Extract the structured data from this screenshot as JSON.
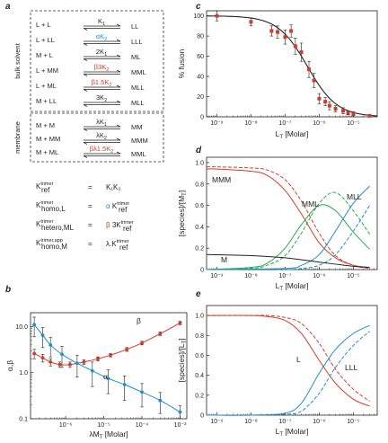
{
  "panels": {
    "a": {
      "label": "a",
      "bulk_label": "bulk solvent",
      "membrane_label": "membrane",
      "bulk_reactions": [
        {
          "left": "L + L",
          "const_a": "",
          "const_b": "K",
          "sub": "1",
          "const_c": "",
          "right": "LL",
          "color": "#222222"
        },
        {
          "left": "L + LL",
          "const_a": "α",
          "const_b": "K",
          "sub": "2",
          "const_c": "",
          "right": "LLL",
          "color": "#1f8fc8"
        },
        {
          "left": "M + L",
          "const_a": "2",
          "const_b": "K",
          "sub": "1",
          "const_c": "",
          "right": "ML",
          "color": "#222222"
        },
        {
          "left": "L + MM",
          "const_a": "β3",
          "const_b": "K",
          "sub": "2",
          "const_c": "",
          "right": "MML",
          "color": "#d23b2b"
        },
        {
          "left": "L + ML",
          "const_a": "β1.5",
          "const_b": "K",
          "sub": "2",
          "const_c": "",
          "right": "MLL",
          "color": "#d23b2b"
        },
        {
          "left": "M + LL",
          "const_a": "3",
          "const_b": "K",
          "sub": "2",
          "const_c": "",
          "right": "MLL",
          "color": "#222222"
        }
      ],
      "membrane_reactions": [
        {
          "left": "M + M",
          "const_a": "λ",
          "const_b": "K",
          "sub": "1",
          "const_c": "",
          "right": "MM",
          "color": "#222222"
        },
        {
          "left": "M + MM",
          "const_a": "λ",
          "const_b": "K",
          "sub": "2",
          "const_c": "",
          "right": "MMM",
          "color": "#222222"
        },
        {
          "left": "M + ML",
          "const_a": "βλ1.5",
          "const_b": "K",
          "sub": "2",
          "const_c": "",
          "right": "MML",
          "color": "#d23b2b"
        }
      ],
      "equations": [
        {
          "K": "K",
          "sup": "trimer",
          "sub": "ref",
          "rhs_pre": "",
          "rhs_color_part": "",
          "rhs": "K₁K₂",
          "color": "#222222"
        },
        {
          "K": "K",
          "sup": "trimer",
          "sub": "homo,L",
          "rhs_pre": "",
          "rhs_color_part": "α",
          "rhs": "K",
          "rhs_sup": "trimer",
          "rhs_sub": "ref",
          "color": "#1f8fc8"
        },
        {
          "K": "K",
          "sup": "trimer",
          "sub": "hetero,ML",
          "rhs_pre": "",
          "rhs_color_part": "β",
          "rhs": "3K",
          "rhs_sup": "trimer",
          "rhs_sub": "ref",
          "color": "#d23b2b"
        },
        {
          "K": "K",
          "sup": "trimer,app",
          "sub": "homo,M",
          "rhs_pre": "",
          "rhs_color_part": "",
          "rhs": "λ.K",
          "rhs_sup": "trimer",
          "rhs_sub": "ref",
          "color": "#222222"
        }
      ]
    },
    "b": {
      "label": "b",
      "xlabel": "λM",
      "xlabel_sub": "T",
      "xlabel_unit": " [Molar]",
      "ylabel": "α,β",
      "series_labels": [
        {
          "text": "β",
          "color": "#d23b2b"
        },
        {
          "text": "α",
          "color": "#1f8fc8"
        }
      ]
    },
    "c": {
      "label": "c",
      "xlabel": "L",
      "xlabel_sub": "T",
      "xlabel_unit": " [Molar]",
      "ylabel": "% fusion"
    },
    "d": {
      "label": "d",
      "xlabel": "L",
      "xlabel_sub": "T",
      "xlabel_unit": " [Molar]",
      "ylabel": "[species]/[M",
      "ylabel_sub": "T",
      "ylabel_end": "]",
      "curve_labels": [
        {
          "text": "MMM",
          "color": "#d23b2b"
        },
        {
          "text": "MML",
          "color": "#2aa84a"
        },
        {
          "text": "MLL",
          "color": "#1f8fc8"
        },
        {
          "text": "M",
          "color": "#222222"
        }
      ]
    },
    "e": {
      "label": "e",
      "xlabel": "L",
      "xlabel_sub": "T",
      "xlabel_unit": " [Molar]",
      "ylabel": "[species]/[L",
      "ylabel_sub": "T",
      "ylabel_end": "]",
      "curve_labels": [
        {
          "text": "L",
          "color": "#d23b2b"
        },
        {
          "text": "LLL",
          "color": "#1f8fc8"
        }
      ]
    }
  },
  "chart_data": [
    {
      "panel": "b",
      "type": "line",
      "xscale": "log",
      "yscale": "log",
      "xlim": [
        1.2e-07,
        0.0015
      ],
      "ylim": [
        0.1,
        20
      ],
      "xticks": [
        1e-07,
        1e-06,
        1e-05,
        0.0001,
        0.001
      ],
      "xtick_labels": [
        "10⁻⁷",
        "10⁻⁶",
        "10⁻⁵",
        "10⁻⁴",
        "10⁻³"
      ],
      "yticks": [
        0.1,
        1.0,
        10.0
      ],
      "ytick_labels": [
        "0.1",
        "1.0",
        "10.0"
      ],
      "series": [
        {
          "name": "β",
          "color": "#d23b2b",
          "x": [
            1.5e-07,
            2.5e-07,
            4e-07,
            7e-07,
            1.3e-06,
            3e-06,
            7e-06,
            1.5e-05,
            4e-05,
            0.0001,
            0.0003,
            0.001
          ],
          "y": [
            2.6,
            2.1,
            1.7,
            1.5,
            1.5,
            1.7,
            2.0,
            2.4,
            3.2,
            4.4,
            7.0,
            12.0
          ],
          "err": [
            0.6,
            0.4,
            0.3,
            0.2,
            0.2,
            0.2,
            0.2,
            0.2,
            0.3,
            0.4,
            0.6,
            1.0
          ]
        },
        {
          "name": "α",
          "color": "#1f8fc8",
          "x": [
            1.5e-07,
            2.5e-07,
            4e-07,
            8e-07,
            2e-06,
            5e-06,
            1.3e-05,
            3.5e-05,
            0.0001,
            0.0003,
            0.001
          ],
          "y": [
            11.0,
            6.5,
            4.0,
            2.5,
            1.6,
            1.1,
            0.75,
            0.55,
            0.38,
            0.25,
            0.14
          ],
          "err": [
            5.0,
            3.0,
            1.8,
            1.2,
            0.8,
            0.6,
            0.4,
            0.3,
            0.2,
            0.12,
            0.05
          ]
        }
      ]
    },
    {
      "panel": "c",
      "type": "scatter",
      "xscale": "log",
      "xlim": [
        5e-10,
        5e-05
      ],
      "ylim": [
        0,
        105
      ],
      "xticks": [
        1e-09,
        1e-08,
        1e-07,
        1e-06,
        1e-05,
        0.0001
      ],
      "xtick_labels": [
        "10⁻⁹",
        "10⁻⁸",
        "10⁻⁷",
        "10⁻⁶",
        "10⁻⁵",
        "10⁻⁴"
      ],
      "yticks": [
        0,
        20,
        40,
        60,
        80,
        100
      ],
      "ytick_labels": [
        "0",
        "20",
        "40",
        "60",
        "80",
        "100"
      ],
      "points": {
        "color": "#d23b2b",
        "x": [
          1e-09,
          1e-08,
          4e-08,
          6e-08,
          1e-07,
          1.5e-07,
          2e-07,
          3e-07,
          5e-07,
          7e-07,
          1e-06,
          1.5e-06,
          2e-06,
          3e-06,
          5e-06,
          7e-06,
          1e-05,
          3e-05
        ],
        "y": [
          100,
          94,
          85,
          84,
          79,
          85,
          70,
          64,
          47,
          36,
          18,
          15,
          11,
          8,
          6,
          4,
          3,
          1
        ],
        "err": [
          5,
          4,
          5,
          6,
          7,
          6,
          8,
          9,
          8,
          7,
          5,
          4,
          4,
          3,
          3,
          2,
          2,
          1
        ]
      },
      "fit": {
        "color": "#222222",
        "ic50": 4.5e-07,
        "hill": 1.0,
        "top": 100
      }
    },
    {
      "panel": "d",
      "type": "line",
      "xscale": "log",
      "xlim": [
        5e-10,
        5e-05
      ],
      "ylim": [
        0,
        1.05
      ],
      "xticks": [
        1e-09,
        1e-08,
        1e-07,
        1e-06,
        1e-05,
        0.0001
      ],
      "xtick_labels": [
        "10⁻⁹",
        "10⁻⁸",
        "10⁻⁷",
        "10⁻⁶",
        "10⁻⁵",
        "10⁻⁴"
      ],
      "yticks": [
        0,
        0.2,
        0.4,
        0.6,
        0.8,
        1.0
      ],
      "ytick_labels": [
        "0",
        "0.2",
        "0.4",
        "0.6",
        "0.8",
        "1.0"
      ],
      "series": [
        {
          "name": "MMM",
          "color": "#d23b2b",
          "dash": false,
          "x": [
            5e-10,
            1e-09,
            1e-08,
            3e-08,
            1e-07,
            3e-07,
            1e-06,
            3e-06,
            1e-05,
            3e-05
          ],
          "y": [
            0.94,
            0.94,
            0.92,
            0.88,
            0.74,
            0.52,
            0.25,
            0.11,
            0.04,
            0.02
          ]
        },
        {
          "name": "MMM",
          "color": "#d23b2b",
          "dash": true,
          "x": [
            5e-10,
            1e-09,
            1e-08,
            3e-08,
            1e-07,
            3e-07,
            1e-06,
            3e-06,
            1e-05,
            3e-05
          ],
          "y": [
            0.96,
            0.96,
            0.95,
            0.93,
            0.84,
            0.64,
            0.34,
            0.13,
            0.04,
            0.01
          ]
        },
        {
          "name": "MML",
          "color": "#2aa84a",
          "dash": false,
          "x": [
            5e-10,
            1e-08,
            3e-08,
            1e-07,
            3e-07,
            1e-06,
            3e-06,
            1e-05,
            3e-05
          ],
          "y": [
            0.0,
            0.02,
            0.06,
            0.2,
            0.42,
            0.6,
            0.55,
            0.35,
            0.19
          ]
        },
        {
          "name": "MML",
          "color": "#2aa84a",
          "dash": true,
          "x": [
            5e-10,
            1e-08,
            3e-08,
            1e-07,
            3e-07,
            1e-06,
            3e-06,
            1e-05,
            3e-05
          ],
          "y": [
            0.0,
            0.01,
            0.04,
            0.13,
            0.34,
            0.62,
            0.72,
            0.55,
            0.33
          ]
        },
        {
          "name": "MLL",
          "color": "#1f8fc8",
          "dash": false,
          "x": [
            5e-10,
            1e-07,
            3e-07,
            1e-06,
            3e-06,
            1e-05,
            3e-05
          ],
          "y": [
            0.0,
            0.01,
            0.04,
            0.14,
            0.36,
            0.62,
            0.78
          ]
        },
        {
          "name": "MLL",
          "color": "#1f8fc8",
          "dash": true,
          "x": [
            5e-10,
            1e-07,
            3e-07,
            1e-06,
            3e-06,
            1e-05,
            3e-05
          ],
          "y": [
            0.0,
            0.0,
            0.01,
            0.04,
            0.14,
            0.36,
            0.6
          ]
        },
        {
          "name": "M",
          "color": "#222222",
          "dash": false,
          "x": [
            5e-10,
            1e-08,
            1e-07,
            1e-06,
            1e-05,
            3e-05
          ],
          "y": [
            0.14,
            0.13,
            0.11,
            0.07,
            0.03,
            0.02
          ]
        }
      ]
    },
    {
      "panel": "e",
      "type": "line",
      "xscale": "log",
      "xlim": [
        5e-10,
        5e-05
      ],
      "ylim": [
        0,
        1.1
      ],
      "xticks": [
        1e-09,
        1e-08,
        1e-07,
        1e-06,
        1e-05,
        0.0001
      ],
      "xtick_labels": [
        "10⁻⁹",
        "10⁻⁸",
        "10⁻⁷",
        "10⁻⁶",
        "10⁻⁵",
        "10⁻⁴"
      ],
      "yticks": [
        0,
        0.2,
        0.4,
        0.6,
        0.8,
        1.0
      ],
      "ytick_labels": [
        "0",
        "0.2",
        "0.4",
        "0.6",
        "0.8",
        "1.0"
      ],
      "series": [
        {
          "name": "L",
          "color": "#d23b2b",
          "dash": false,
          "x": [
            5e-10,
            1e-08,
            3e-08,
            1e-07,
            3e-07,
            1e-06,
            3e-06,
            1e-05,
            3e-05
          ],
          "y": [
            1.0,
            1.0,
            0.99,
            0.95,
            0.82,
            0.55,
            0.32,
            0.16,
            0.09
          ]
        },
        {
          "name": "L",
          "color": "#d23b2b",
          "dash": true,
          "x": [
            5e-10,
            1e-08,
            3e-08,
            1e-07,
            3e-07,
            1e-06,
            3e-06,
            1e-05,
            3e-05
          ],
          "y": [
            1.0,
            1.0,
            1.0,
            0.98,
            0.92,
            0.72,
            0.46,
            0.26,
            0.14
          ]
        },
        {
          "name": "LLL",
          "color": "#1f8fc8",
          "dash": false,
          "x": [
            5e-10,
            1e-08,
            1e-07,
            3e-07,
            1e-06,
            3e-06,
            1e-05,
            3e-05
          ],
          "y": [
            0.0,
            0.0,
            0.02,
            0.12,
            0.42,
            0.66,
            0.82,
            0.9
          ]
        },
        {
          "name": "LLL",
          "color": "#1f8fc8",
          "dash": true,
          "x": [
            5e-10,
            1e-08,
            1e-07,
            3e-07,
            1e-06,
            3e-06,
            1e-05,
            3e-05
          ],
          "y": [
            0.0,
            0.0,
            0.01,
            0.04,
            0.22,
            0.48,
            0.7,
            0.84
          ]
        }
      ]
    }
  ]
}
